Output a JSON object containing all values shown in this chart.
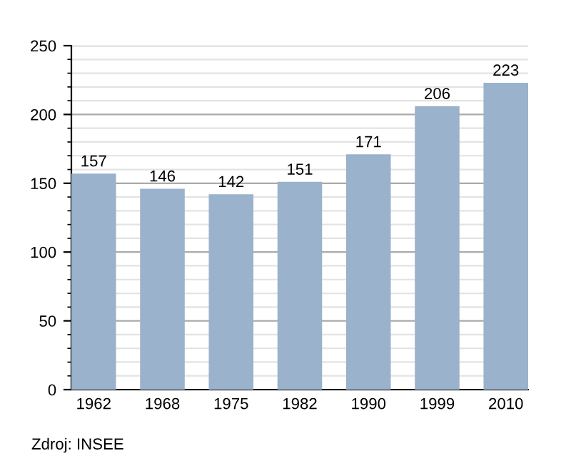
{
  "chart_data": {
    "type": "bar",
    "categories": [
      "1962",
      "1968",
      "1975",
      "1982",
      "1990",
      "1999",
      "2010"
    ],
    "values": [
      157,
      146,
      142,
      151,
      171,
      206,
      223
    ],
    "color": "#9ab2cb",
    "ylim": [
      0,
      250
    ],
    "yticks": [
      0,
      50,
      100,
      150,
      200,
      250
    ],
    "grid": "y",
    "data_labels": true,
    "annotations": [
      "Zdroj: INSEE"
    ]
  }
}
